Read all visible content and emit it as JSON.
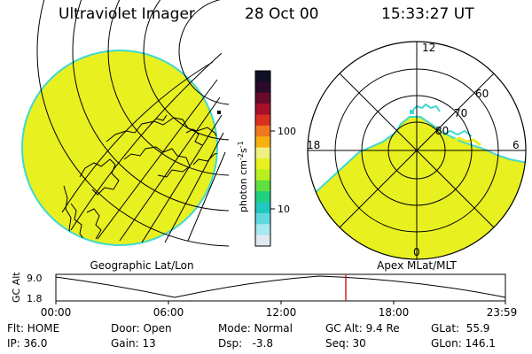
{
  "header": {
    "title": "Ultraviolet Imager",
    "date": "28 Oct 00",
    "time": "15:33:27 UT"
  },
  "geo_panel": {
    "label": "Geographic Lat/Lon"
  },
  "polar_panel": {
    "label": "Apex MLat/MLT",
    "mlt_labels": {
      "top": "12",
      "left": "18",
      "right": "6",
      "bottom": "0"
    },
    "lat_labels": [
      "60",
      "70",
      "80"
    ]
  },
  "colorbar": {
    "unit_label": "photon cm-2s-1",
    "unit_main": "photon cm",
    "unit_sup1": "-2",
    "unit_mid": "s",
    "unit_sup2": "-1",
    "ticks": [
      "100",
      "10"
    ],
    "colors_top_to_bottom": [
      "#101028",
      "#2a0a2a",
      "#6a0a2a",
      "#a8102a",
      "#d83020",
      "#f07820",
      "#f8b010",
      "#f0f080",
      "#e8f020",
      "#b8f020",
      "#60e040",
      "#20d080",
      "#20c8c0",
      "#60d8e0",
      "#a8e8f0",
      "#e0e8f0"
    ]
  },
  "altitude_plot": {
    "y_axis_label": "GC Alt",
    "y_ticks": [
      "9.0",
      "1.8"
    ],
    "x_ticks": [
      "00:00",
      "06:00",
      "12:00",
      "18:00",
      "23:59"
    ],
    "current_time_marker": "15:33",
    "marker_color": "#d02020"
  },
  "status": {
    "flt": "Flt: HOME",
    "ip": "IP: 36.0",
    "door": "Door: Open",
    "gain": "Gain: 13",
    "mode": "Mode: Normal",
    "dsp": "Dsp:   -3.8",
    "gc_alt": "GC Alt: 9.4 Re",
    "seq": "Seq: 30",
    "glat": "GLat:  55.9",
    "glon": "GLon: 146.1"
  },
  "colors": {
    "emission": "#e8f020",
    "emission_edge": "#40d8d0"
  }
}
